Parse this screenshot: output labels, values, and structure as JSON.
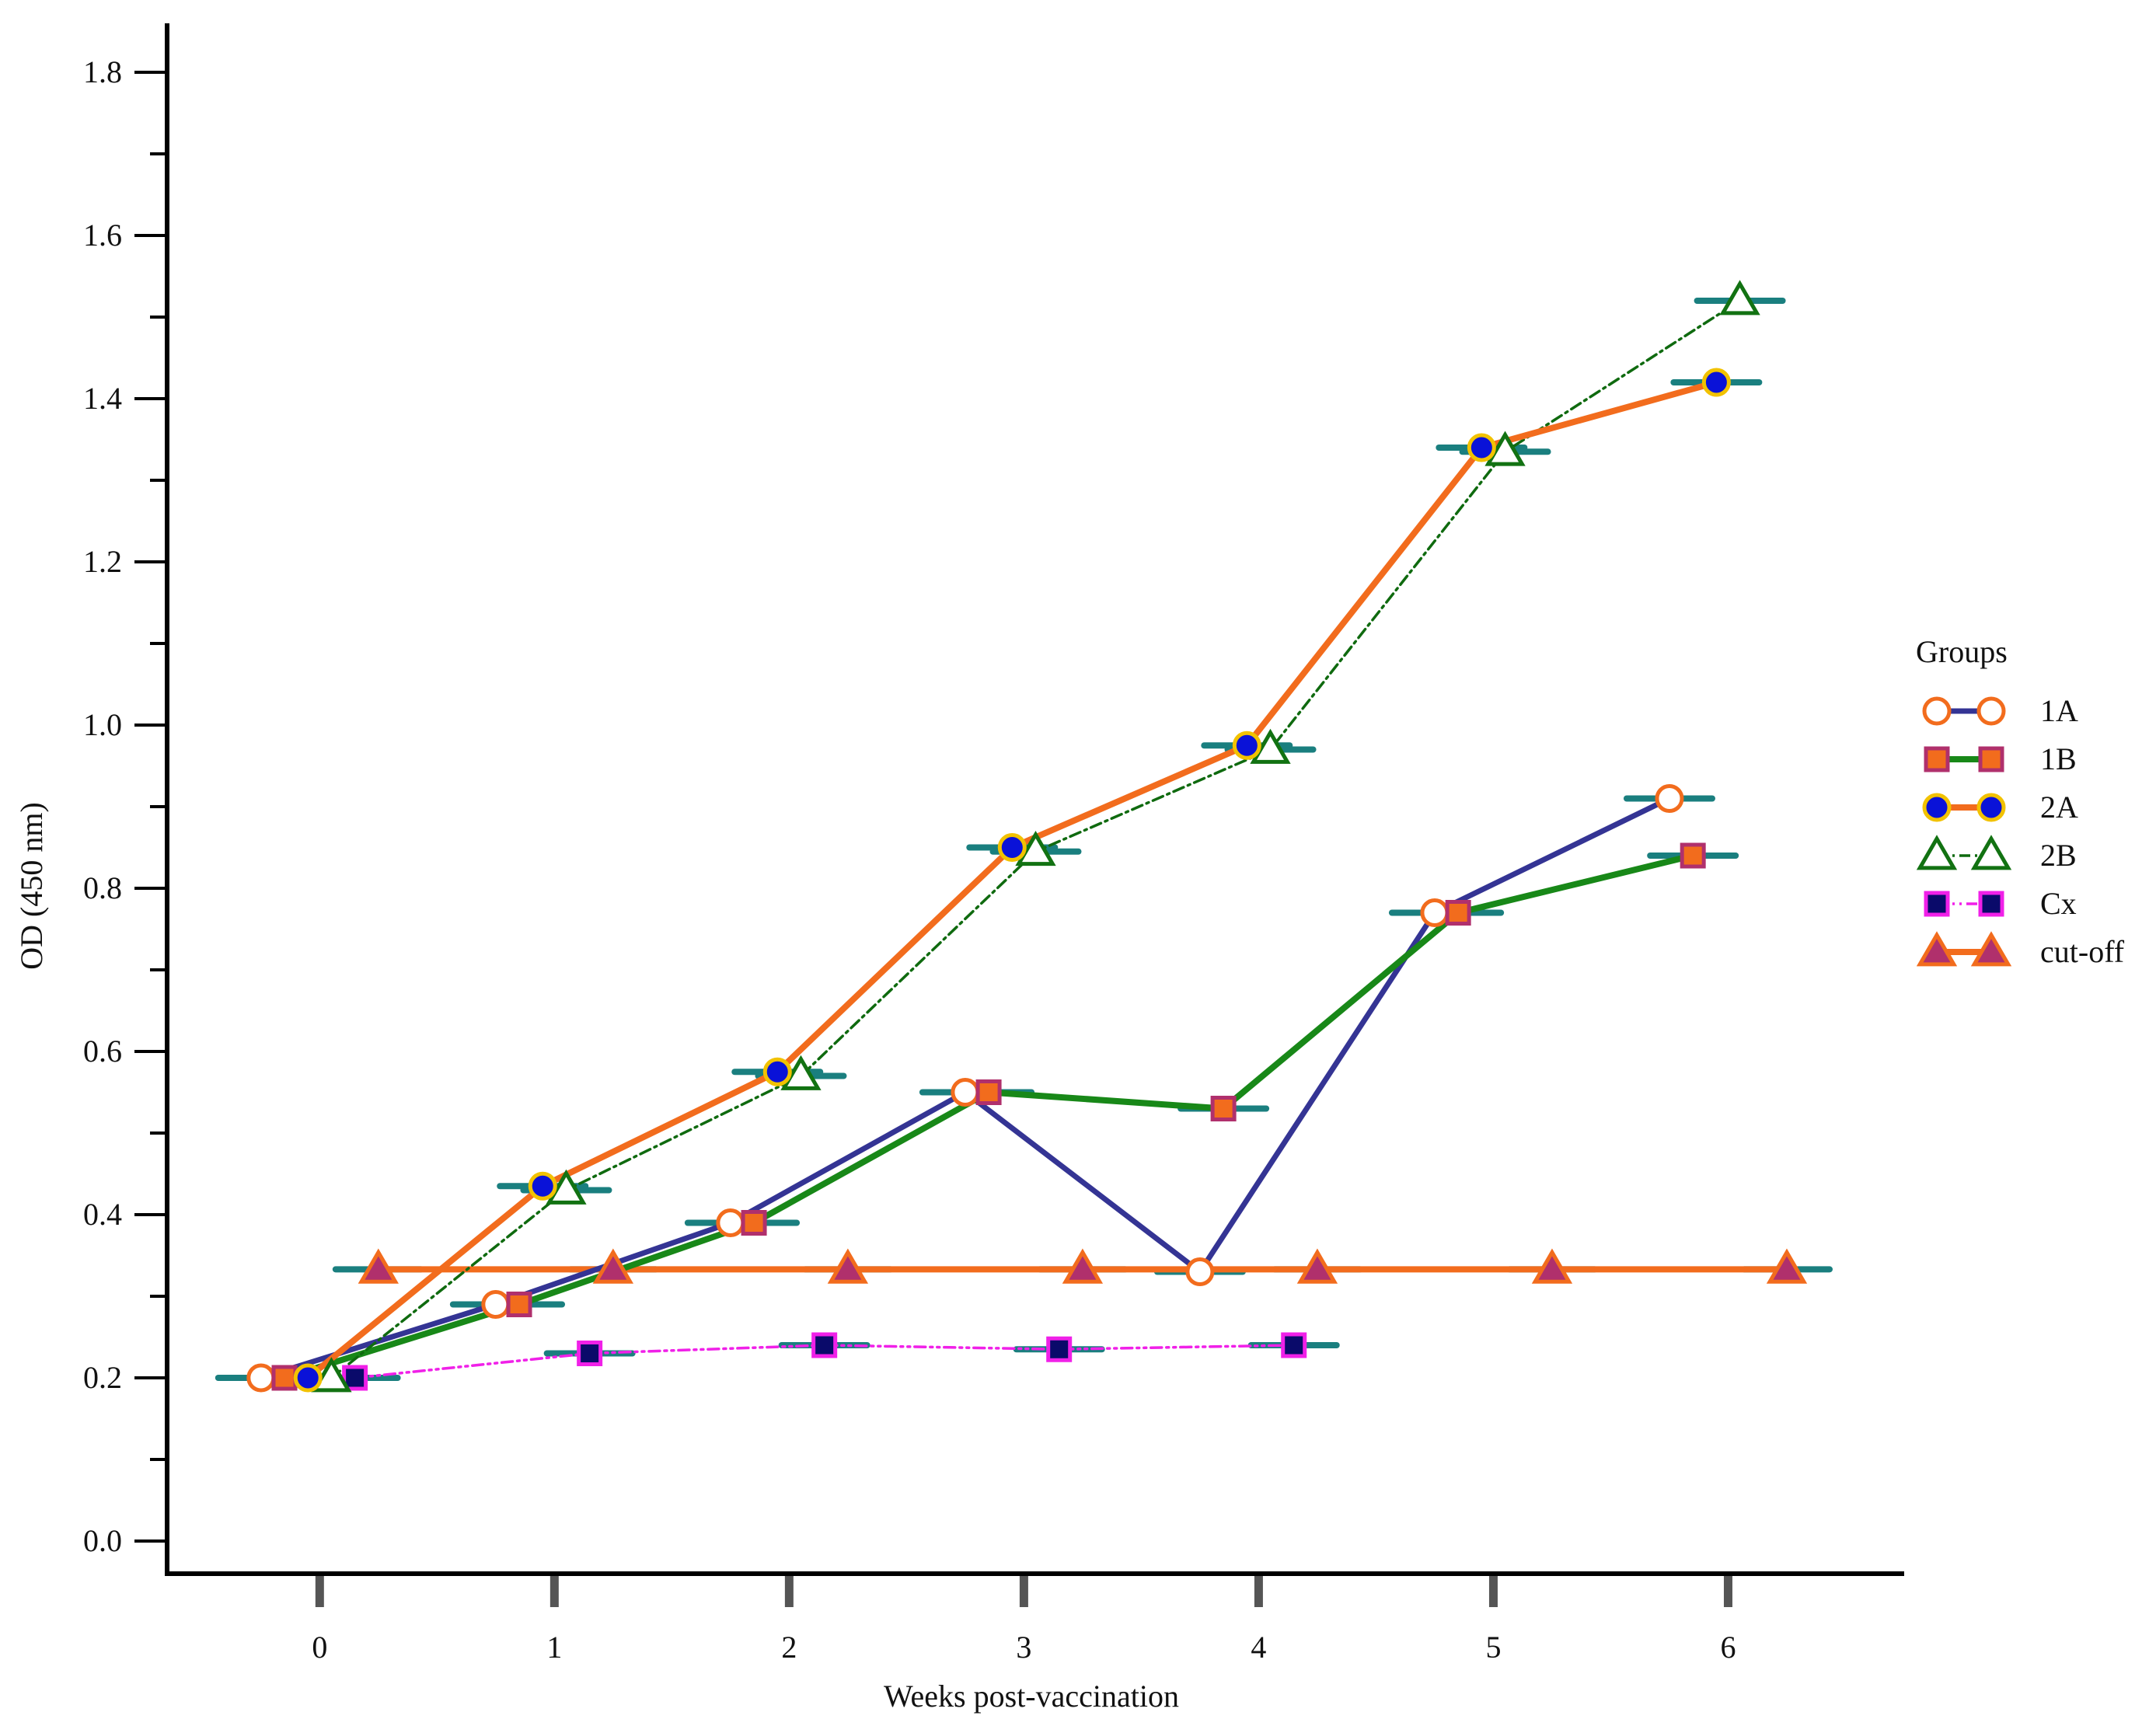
{
  "chart_data": {
    "type": "line",
    "xlabel": "Weeks post-vaccination",
    "ylabel": "OD (450 nm)",
    "xlim": [
      -0.65,
      6.75
    ],
    "ylim": [
      -0.04,
      1.86
    ],
    "xticks": [
      0,
      1,
      2,
      3,
      4,
      5,
      6
    ],
    "xtick_labels": [
      "0",
      "1",
      "2",
      "3",
      "4",
      "5",
      "6"
    ],
    "yticks": [
      0.0,
      0.2,
      0.4,
      0.6,
      0.8,
      1.0,
      1.2,
      1.4,
      1.6,
      1.8
    ],
    "ytick_labels": [
      "0.0",
      "0.2",
      "0.4",
      "0.6",
      "0.8",
      "1.0",
      "1.2",
      "1.4",
      "1.6",
      "1.8"
    ],
    "grid": false,
    "legend": {
      "title": "Groups",
      "placement": "right"
    },
    "errorbar_color": "#1a7f7f",
    "series": [
      {
        "name": "1A",
        "line_color": "#343494",
        "line_style": "solid",
        "line_weight": "medium",
        "marker": "circle",
        "marker_fill": "#ffffff",
        "marker_edge": "#f26c1d",
        "x": [
          -0.25,
          0.75,
          1.75,
          2.75,
          3.75,
          4.75,
          5.75
        ],
        "y": [
          0.2,
          0.29,
          0.39,
          0.55,
          0.33,
          0.77,
          0.91
        ]
      },
      {
        "name": "1B",
        "line_color": "#188818",
        "line_style": "solid",
        "line_weight": "heavy",
        "marker": "square",
        "marker_fill": "#f26c1d",
        "marker_edge": "#b0306c",
        "x": [
          -0.15,
          0.85,
          1.85,
          2.85,
          3.85,
          4.85,
          5.85
        ],
        "y": [
          0.2,
          0.29,
          0.39,
          0.55,
          0.53,
          0.77,
          0.84
        ]
      },
      {
        "name": "2A",
        "line_color": "#f26c1d",
        "line_style": "solid",
        "line_weight": "heavy",
        "marker": "circle",
        "marker_fill": "#0a12d8",
        "marker_edge": "#f2c200",
        "x": [
          -0.05,
          0.95,
          1.95,
          2.95,
          3.95,
          4.95,
          5.95
        ],
        "y": [
          0.2,
          0.435,
          0.575,
          0.85,
          0.975,
          1.34,
          1.42
        ]
      },
      {
        "name": "2B",
        "line_color": "#0f6a0f",
        "line_style": "dashdot",
        "line_weight": "thin",
        "marker": "triangle",
        "marker_fill": "#ffffff",
        "marker_edge": "#127212",
        "x": [
          0.05,
          1.05,
          2.05,
          3.05,
          4.05,
          5.05,
          6.05
        ],
        "y": [
          0.2,
          0.43,
          0.57,
          0.845,
          0.97,
          1.335,
          1.52
        ]
      },
      {
        "name": "Cx",
        "line_color": "#f020e8",
        "line_style": "dashdotdot",
        "line_weight": "thin",
        "marker": "square",
        "marker_fill": "#0a0a6a",
        "marker_edge": "#f020e8",
        "x": [
          0.15,
          1.15,
          2.15,
          3.15,
          4.15
        ],
        "y": [
          0.2,
          0.23,
          0.24,
          0.235,
          0.24
        ]
      },
      {
        "name": "cut-off",
        "line_color": "#f26c1d",
        "line_style": "solid",
        "line_weight": "heavy",
        "marker": "triangle",
        "marker_fill": "#b0306c",
        "marker_edge": "#f26c1d",
        "x": [
          0.25,
          1.25,
          2.25,
          3.25,
          4.25,
          5.25,
          6.25
        ],
        "y": [
          0.333,
          0.333,
          0.333,
          0.333,
          0.333,
          0.333,
          0.333
        ]
      }
    ]
  }
}
